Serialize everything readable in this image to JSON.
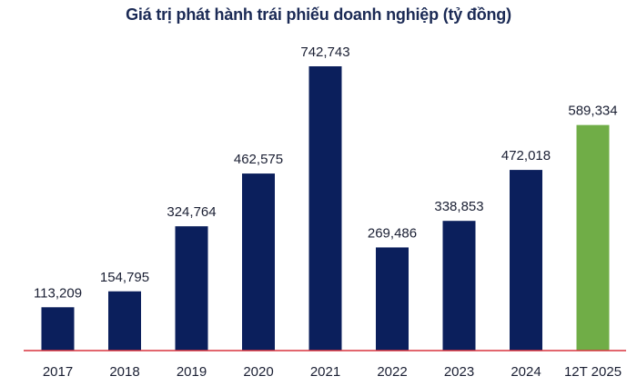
{
  "chart_data": {
    "type": "bar",
    "title": "Giá trị phát hành trái phiếu doanh nghiệp (tỷ đồng)",
    "categories": [
      "2017",
      "2018",
      "2019",
      "2020",
      "2021",
      "2022",
      "2023",
      "2024",
      "12T 2025"
    ],
    "values": [
      113209,
      154795,
      324764,
      462575,
      742743,
      269486,
      338853,
      472018,
      589334
    ],
    "data_labels": [
      "113,209",
      "154,795",
      "324,764",
      "462,575",
      "742,743",
      "269,486",
      "338,853",
      "472,018",
      "589,334"
    ],
    "xlabel": "",
    "ylabel": "",
    "ylim": [
      0,
      742743
    ],
    "grid": false,
    "legend": "none",
    "colors": {
      "bar": "#0b1f5c",
      "highlight": "#70ad47",
      "baseline": "#d9333f",
      "highlight_category": "12T 2025"
    }
  }
}
